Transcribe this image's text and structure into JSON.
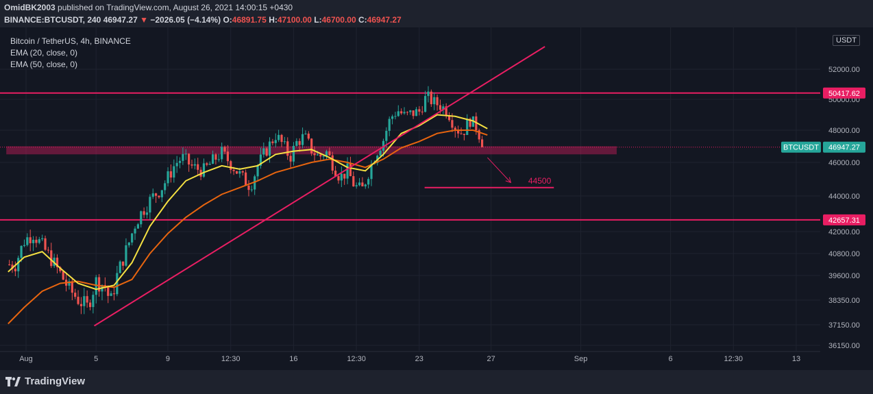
{
  "header": {
    "author": "OmidBK2003",
    "published_text": "published on TradingView.com, August 26, 2021 14:00:15 +0430",
    "symbol": "BINANCE:BTCUSDT, 240",
    "price": "46947.27",
    "change": "−2026.05 (−4.14%)",
    "o_label": "O:",
    "o_value": "46891.75",
    "h_label": "H:",
    "h_value": "47100.00",
    "l_label": "L:",
    "l_value": "46700.00",
    "c_label": "C:",
    "c_value": "46947.27"
  },
  "legend": {
    "title": "Bitcoin / TetherUS, 4h, BINANCE",
    "ema20": "EMA (20, close, 0)",
    "ema50": "EMA (50, close, 0)"
  },
  "currency_button": "USDT",
  "footer": {
    "brand": "TradingView"
  },
  "colors": {
    "background": "#131722",
    "up": "#26a69a",
    "down": "#ef5350",
    "ema20": "#f5e142",
    "ema50": "#e8650f",
    "drawing": "#e91e63"
  },
  "chart_data": {
    "type": "candlestick",
    "yaxis": {
      "ticks": [
        {
          "label": "52000.00",
          "value": 52000
        },
        {
          "label": "50000.00",
          "value": 50000
        },
        {
          "label": "48000.00",
          "value": 48000
        },
        {
          "label": "46000.00",
          "value": 46000
        },
        {
          "label": "44000.00",
          "value": 44000
        },
        {
          "label": "42000.00",
          "value": 42000
        },
        {
          "label": "40800.00",
          "value": 40800
        },
        {
          "label": "39600.00",
          "value": 39600
        },
        {
          "label": "38350.00",
          "value": 38350
        },
        {
          "label": "37150.00",
          "value": 37150
        },
        {
          "label": "36150.00",
          "value": 36150
        }
      ]
    },
    "xaxis": {
      "ticks": [
        {
          "label": "Aug",
          "day": 1.1
        },
        {
          "label": "5",
          "day": 5
        },
        {
          "label": "9",
          "day": 9
        },
        {
          "label": "12:30",
          "day": 12.5
        },
        {
          "label": "16",
          "day": 16
        },
        {
          "label": "12:30",
          "day": 19.5
        },
        {
          "label": "23",
          "day": 23
        },
        {
          "label": "27",
          "day": 27
        },
        {
          "label": "Sep",
          "day": 32
        },
        {
          "label": "6",
          "day": 37
        },
        {
          "label": "12:30",
          "day": 40.5
        },
        {
          "label": "13",
          "day": 44
        }
      ]
    },
    "closes": [
      {
        "day": 0.5,
        "close": 40200
      },
      {
        "day": 1.0,
        "close": 41500
      },
      {
        "day": 1.5,
        "close": 41900
      },
      {
        "day": 2.0,
        "close": 41200
      },
      {
        "day": 2.5,
        "close": 40500
      },
      {
        "day": 3.0,
        "close": 39700
      },
      {
        "day": 3.5,
        "close": 38900
      },
      {
        "day": 4.0,
        "close": 38400
      },
      {
        "day": 4.5,
        "close": 38000
      },
      {
        "day": 5.0,
        "close": 39300
      },
      {
        "day": 5.5,
        "close": 39100
      },
      {
        "day": 5.8,
        "close": 38200
      },
      {
        "day": 6.2,
        "close": 39700
      },
      {
        "day": 6.8,
        "close": 41300
      },
      {
        "day": 7.2,
        "close": 42500
      },
      {
        "day": 7.6,
        "close": 43200
      },
      {
        "day": 8.2,
        "close": 44000
      },
      {
        "day": 8.6,
        "close": 44400
      },
      {
        "day": 9.0,
        "close": 45100
      },
      {
        "day": 9.4,
        "close": 45900
      },
      {
        "day": 9.8,
        "close": 46300
      },
      {
        "day": 10.4,
        "close": 45700
      },
      {
        "day": 11.0,
        "close": 45500
      },
      {
        "day": 11.6,
        "close": 46200
      },
      {
        "day": 12.0,
        "close": 46600
      },
      {
        "day": 12.6,
        "close": 45800
      },
      {
        "day": 13.2,
        "close": 45000
      },
      {
        "day": 13.6,
        "close": 44600
      },
      {
        "day": 14.0,
        "close": 45800
      },
      {
        "day": 14.4,
        "close": 46600
      },
      {
        "day": 15.0,
        "close": 47700
      },
      {
        "day": 15.4,
        "close": 47100
      },
      {
        "day": 15.8,
        "close": 46300
      },
      {
        "day": 16.2,
        "close": 47300
      },
      {
        "day": 16.6,
        "close": 47600
      },
      {
        "day": 17.0,
        "close": 46800
      },
      {
        "day": 17.4,
        "close": 46300
      },
      {
        "day": 17.8,
        "close": 46700
      },
      {
        "day": 18.2,
        "close": 45900
      },
      {
        "day": 18.6,
        "close": 45100
      },
      {
        "day": 19.0,
        "close": 45500
      },
      {
        "day": 19.4,
        "close": 44600
      },
      {
        "day": 19.8,
        "close": 44300
      },
      {
        "day": 20.2,
        "close": 45500
      },
      {
        "day": 20.6,
        "close": 46600
      },
      {
        "day": 21.0,
        "close": 47400
      },
      {
        "day": 21.4,
        "close": 48800
      },
      {
        "day": 21.8,
        "close": 49300
      },
      {
        "day": 22.2,
        "close": 48900
      },
      {
        "day": 22.6,
        "close": 49100
      },
      {
        "day": 23.0,
        "close": 49200
      },
      {
        "day": 23.4,
        "close": 50200
      },
      {
        "day": 23.8,
        "close": 49800
      },
      {
        "day": 24.2,
        "close": 49600
      },
      {
        "day": 24.6,
        "close": 49200
      },
      {
        "day": 25.0,
        "close": 48200
      },
      {
        "day": 25.4,
        "close": 47800
      },
      {
        "day": 25.8,
        "close": 48700
      },
      {
        "day": 26.2,
        "close": 48200
      },
      {
        "day": 26.6,
        "close": 46947.27
      }
    ],
    "ema20": [
      {
        "day": 0.1,
        "value": 39800
      },
      {
        "day": 1.0,
        "value": 40600
      },
      {
        "day": 2.0,
        "value": 40900
      },
      {
        "day": 3.0,
        "value": 40000
      },
      {
        "day": 4.0,
        "value": 39200
      },
      {
        "day": 5.0,
        "value": 38900
      },
      {
        "day": 6.0,
        "value": 39100
      },
      {
        "day": 7.0,
        "value": 40300
      },
      {
        "day": 8.0,
        "value": 42300
      },
      {
        "day": 9.0,
        "value": 43700
      },
      {
        "day": 10.0,
        "value": 44900
      },
      {
        "day": 11.0,
        "value": 45400
      },
      {
        "day": 12.0,
        "value": 45800
      },
      {
        "day": 13.0,
        "value": 45600
      },
      {
        "day": 14.0,
        "value": 45800
      },
      {
        "day": 15.0,
        "value": 46500
      },
      {
        "day": 16.0,
        "value": 46700
      },
      {
        "day": 17.0,
        "value": 46800
      },
      {
        "day": 18.0,
        "value": 46300
      },
      {
        "day": 19.0,
        "value": 45700
      },
      {
        "day": 20.0,
        "value": 45500
      },
      {
        "day": 21.0,
        "value": 46500
      },
      {
        "day": 22.0,
        "value": 47800
      },
      {
        "day": 23.0,
        "value": 48300
      },
      {
        "day": 24.0,
        "value": 49000
      },
      {
        "day": 25.0,
        "value": 48900
      },
      {
        "day": 26.0,
        "value": 48600
      },
      {
        "day": 26.8,
        "value": 48100
      }
    ],
    "ema50": [
      {
        "day": 0.1,
        "value": 37200
      },
      {
        "day": 1.0,
        "value": 38000
      },
      {
        "day": 2.0,
        "value": 38800
      },
      {
        "day": 3.0,
        "value": 39200
      },
      {
        "day": 4.0,
        "value": 39300
      },
      {
        "day": 5.0,
        "value": 39100
      },
      {
        "day": 6.0,
        "value": 39000
      },
      {
        "day": 7.0,
        "value": 39400
      },
      {
        "day": 8.0,
        "value": 40800
      },
      {
        "day": 9.0,
        "value": 41900
      },
      {
        "day": 10.0,
        "value": 42800
      },
      {
        "day": 11.0,
        "value": 43500
      },
      {
        "day": 12.0,
        "value": 44100
      },
      {
        "day": 13.0,
        "value": 44500
      },
      {
        "day": 14.0,
        "value": 44900
      },
      {
        "day": 15.0,
        "value": 45400
      },
      {
        "day": 16.0,
        "value": 45700
      },
      {
        "day": 17.0,
        "value": 46000
      },
      {
        "day": 18.0,
        "value": 46200
      },
      {
        "day": 19.0,
        "value": 46000
      },
      {
        "day": 20.0,
        "value": 45700
      },
      {
        "day": 21.0,
        "value": 46200
      },
      {
        "day": 22.0,
        "value": 46900
      },
      {
        "day": 23.0,
        "value": 47300
      },
      {
        "day": 24.0,
        "value": 47800
      },
      {
        "day": 25.0,
        "value": 48000
      },
      {
        "day": 26.0,
        "value": 48000
      },
      {
        "day": 26.8,
        "value": 47700
      }
    ],
    "horizontal_lines": [
      {
        "price": 50417.62,
        "label": "50417.62"
      },
      {
        "price": 42657.31,
        "label": "42657.31"
      }
    ],
    "zone": {
      "from_day": 0,
      "to_day": 34,
      "low": 46500,
      "high": 47000
    },
    "trendline": {
      "from": {
        "day": 4.9,
        "price": 37100
      },
      "to": {
        "day": 30.0,
        "price": 53500
      }
    },
    "target": {
      "from_day": 23.3,
      "to_day": 30.5,
      "price": 44500,
      "label": "44500"
    },
    "arrow": {
      "from": {
        "day": 26.8,
        "price": 46300
      },
      "to": {
        "day": 28.1,
        "price": 44800
      }
    },
    "last_price": {
      "symbol": "BTCUSDT",
      "price": 46947.27,
      "label": "46947.27"
    }
  }
}
